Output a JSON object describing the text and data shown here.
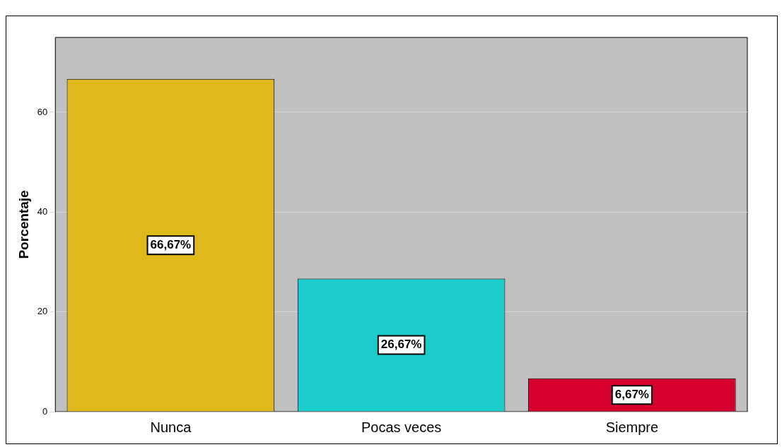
{
  "chart_data": {
    "type": "bar",
    "ylabel": "Porcentaje",
    "categories": [
      "Nunca",
      "Pocas veces",
      "Siempre"
    ],
    "values": [
      66.67,
      26.67,
      6.67
    ],
    "colors": [
      "#e0b91c",
      "#1ccbcb",
      "#d6002e"
    ],
    "value_labels": [
      "66,67%",
      "26,67%",
      "6,67%"
    ],
    "ylim": [
      0,
      75
    ],
    "yticks": [
      0,
      20,
      40,
      60
    ],
    "grid": "y",
    "legend": false
  }
}
